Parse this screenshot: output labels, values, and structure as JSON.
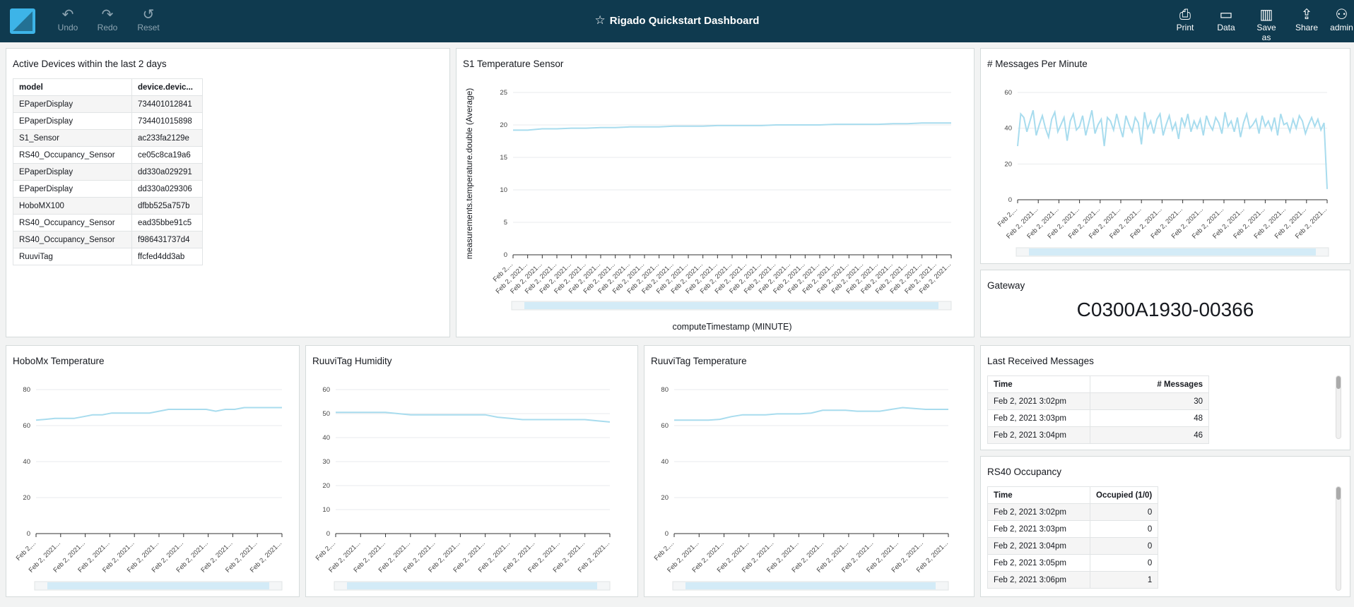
{
  "toolbar": {
    "undo": "Undo",
    "redo": "Redo",
    "reset": "Reset",
    "title": "Rigado Quickstart Dashboard",
    "print": "Print",
    "data": "Data",
    "save_as": "Save as",
    "share": "Share",
    "user": "admin"
  },
  "devices": {
    "title": "Active Devices within the last 2 days",
    "headers": [
      "model",
      "device.devic..."
    ],
    "rows": [
      [
        "EPaperDisplay",
        "734401012841"
      ],
      [
        "EPaperDisplay",
        "734401015898"
      ],
      [
        "S1_Sensor",
        "ac233fa2129e"
      ],
      [
        "RS40_Occupancy_Sensor",
        "ce05c8ca19a6"
      ],
      [
        "EPaperDisplay",
        "dd330a029291"
      ],
      [
        "EPaperDisplay",
        "dd330a029306"
      ],
      [
        "HoboMX100",
        "dfbb525a757b"
      ],
      [
        "RS40_Occupancy_Sensor",
        "ead35bbe91c5"
      ],
      [
        "RS40_Occupancy_Sensor",
        "f986431737d4"
      ],
      [
        "RuuviTag",
        "ffcfed4dd3ab"
      ]
    ]
  },
  "gateway": {
    "title": "Gateway",
    "value": "C0300A1930-00366"
  },
  "last_messages": {
    "title": "Last Received Messages",
    "headers": [
      "Time",
      "# Messages"
    ],
    "rows": [
      [
        "Feb 2, 2021 3:02pm",
        "30"
      ],
      [
        "Feb 2, 2021 3:03pm",
        "48"
      ],
      [
        "Feb 2, 2021 3:04pm",
        "46"
      ]
    ]
  },
  "occupancy": {
    "title": "RS40 Occupancy",
    "headers": [
      "Time",
      "Occupied (1/0)"
    ],
    "rows": [
      [
        "Feb 2, 2021 3:02pm",
        "0"
      ],
      [
        "Feb 2, 2021 3:03pm",
        "0"
      ],
      [
        "Feb 2, 2021 3:04pm",
        "0"
      ],
      [
        "Feb 2, 2021 3:05pm",
        "0"
      ],
      [
        "Feb 2, 2021 3:06pm",
        "1"
      ]
    ]
  },
  "colors": {
    "line": "#a8dcee",
    "topbar": "#0f3a4f",
    "scroll": "#d3ebf7"
  },
  "chart_data": [
    {
      "id": "s1",
      "type": "line",
      "title": "S1 Temperature Sensor",
      "xlabel": "computeTimestamp (MINUTE)",
      "ylabel": "measurements.temperature.double (Average)",
      "ylim": [
        0,
        25
      ],
      "yticks": [
        0,
        5,
        10,
        15,
        20,
        25
      ],
      "tick_label": "Feb 2, 2021...",
      "first_tick_label": "Feb 2,...",
      "xtick_count": 31,
      "values": [
        19.2,
        19.2,
        19.4,
        19.4,
        19.5,
        19.5,
        19.6,
        19.6,
        19.7,
        19.7,
        19.7,
        19.8,
        19.8,
        19.8,
        19.9,
        19.9,
        19.9,
        19.9,
        20.0,
        20.0,
        20.0,
        20.0,
        20.1,
        20.1,
        20.1,
        20.1,
        20.2,
        20.2,
        20.3,
        20.3,
        20.3
      ]
    },
    {
      "id": "msgs",
      "type": "line",
      "title": "# Messages Per Minute",
      "xlabel": "",
      "ylabel": "",
      "ylim": [
        0,
        60
      ],
      "yticks": [
        0,
        20,
        40,
        60
      ],
      "tick_label": "Feb 2, 2021...",
      "first_tick_label": "Feb 2,...",
      "xtick_count": 16,
      "values": [
        30,
        48,
        46,
        38,
        44,
        50,
        36,
        42,
        47,
        40,
        35,
        45,
        49,
        38,
        42,
        46,
        33,
        44,
        48,
        39,
        41,
        47,
        36,
        43,
        50,
        37,
        42,
        45,
        30,
        46,
        44,
        39,
        48,
        41,
        35,
        47,
        42,
        38,
        46,
        43,
        31,
        49,
        40,
        44,
        37,
        45,
        48,
        36,
        42,
        47,
        39,
        43,
        34,
        46,
        41,
        48,
        38,
        44,
        40,
        45,
        36,
        47,
        42,
        39,
        46,
        43,
        37,
        49,
        41,
        44,
        38,
        46,
        35,
        43,
        48,
        40,
        42,
        45,
        37,
        47,
        41,
        44,
        39,
        46,
        36,
        48,
        42,
        43,
        38,
        45,
        40,
        47,
        44,
        37,
        42,
        46,
        41,
        45,
        39,
        43,
        6
      ]
    },
    {
      "id": "hobo",
      "type": "line",
      "title": "HoboMx Temperature",
      "xlabel": "",
      "ylabel": "",
      "ylim": [
        0,
        80
      ],
      "yticks": [
        0,
        20,
        40,
        60,
        80
      ],
      "tick_label": "Feb 2, 2021...",
      "first_tick_label": "Feb 2,...",
      "xtick_count": 11,
      "values": [
        63,
        63.5,
        64,
        64,
        64,
        65,
        66,
        66,
        67,
        67,
        67,
        67,
        67,
        68,
        69,
        69,
        69,
        69,
        69,
        68,
        69,
        69,
        70,
        70,
        70,
        70,
        70
      ]
    },
    {
      "id": "ruuvi_h",
      "type": "line",
      "title": "RuuviTag Humidity",
      "xlabel": "",
      "ylabel": "",
      "ylim": [
        0,
        60
      ],
      "yticks": [
        0,
        10,
        20,
        30,
        40,
        50,
        60
      ],
      "tick_label": "Feb 2, 2021...",
      "first_tick_label": "Feb 2,...",
      "xtick_count": 12,
      "values": [
        50.5,
        50.5,
        50.5,
        50.5,
        50.5,
        50,
        49.5,
        49.5,
        49.5,
        49.5,
        49.5,
        49.5,
        49.5,
        48.5,
        48,
        47.5,
        47.5,
        47.5,
        47.5,
        47.5,
        47.5,
        47,
        46.5
      ]
    },
    {
      "id": "ruuvi_t",
      "type": "line",
      "title": "RuuviTag Temperature",
      "xlabel": "",
      "ylabel": "",
      "ylim": [
        0,
        80
      ],
      "yticks": [
        0,
        20,
        40,
        60,
        80
      ],
      "tick_label": "Feb 2, 2021...",
      "first_tick_label": "Feb 2,...",
      "xtick_count": 12,
      "values": [
        63,
        63,
        63,
        63,
        63.5,
        65,
        66,
        66,
        66,
        66.5,
        66.5,
        66.5,
        67,
        68.5,
        68.5,
        68.5,
        68,
        68,
        68,
        69,
        70,
        69.5,
        69,
        69,
        69
      ]
    }
  ]
}
